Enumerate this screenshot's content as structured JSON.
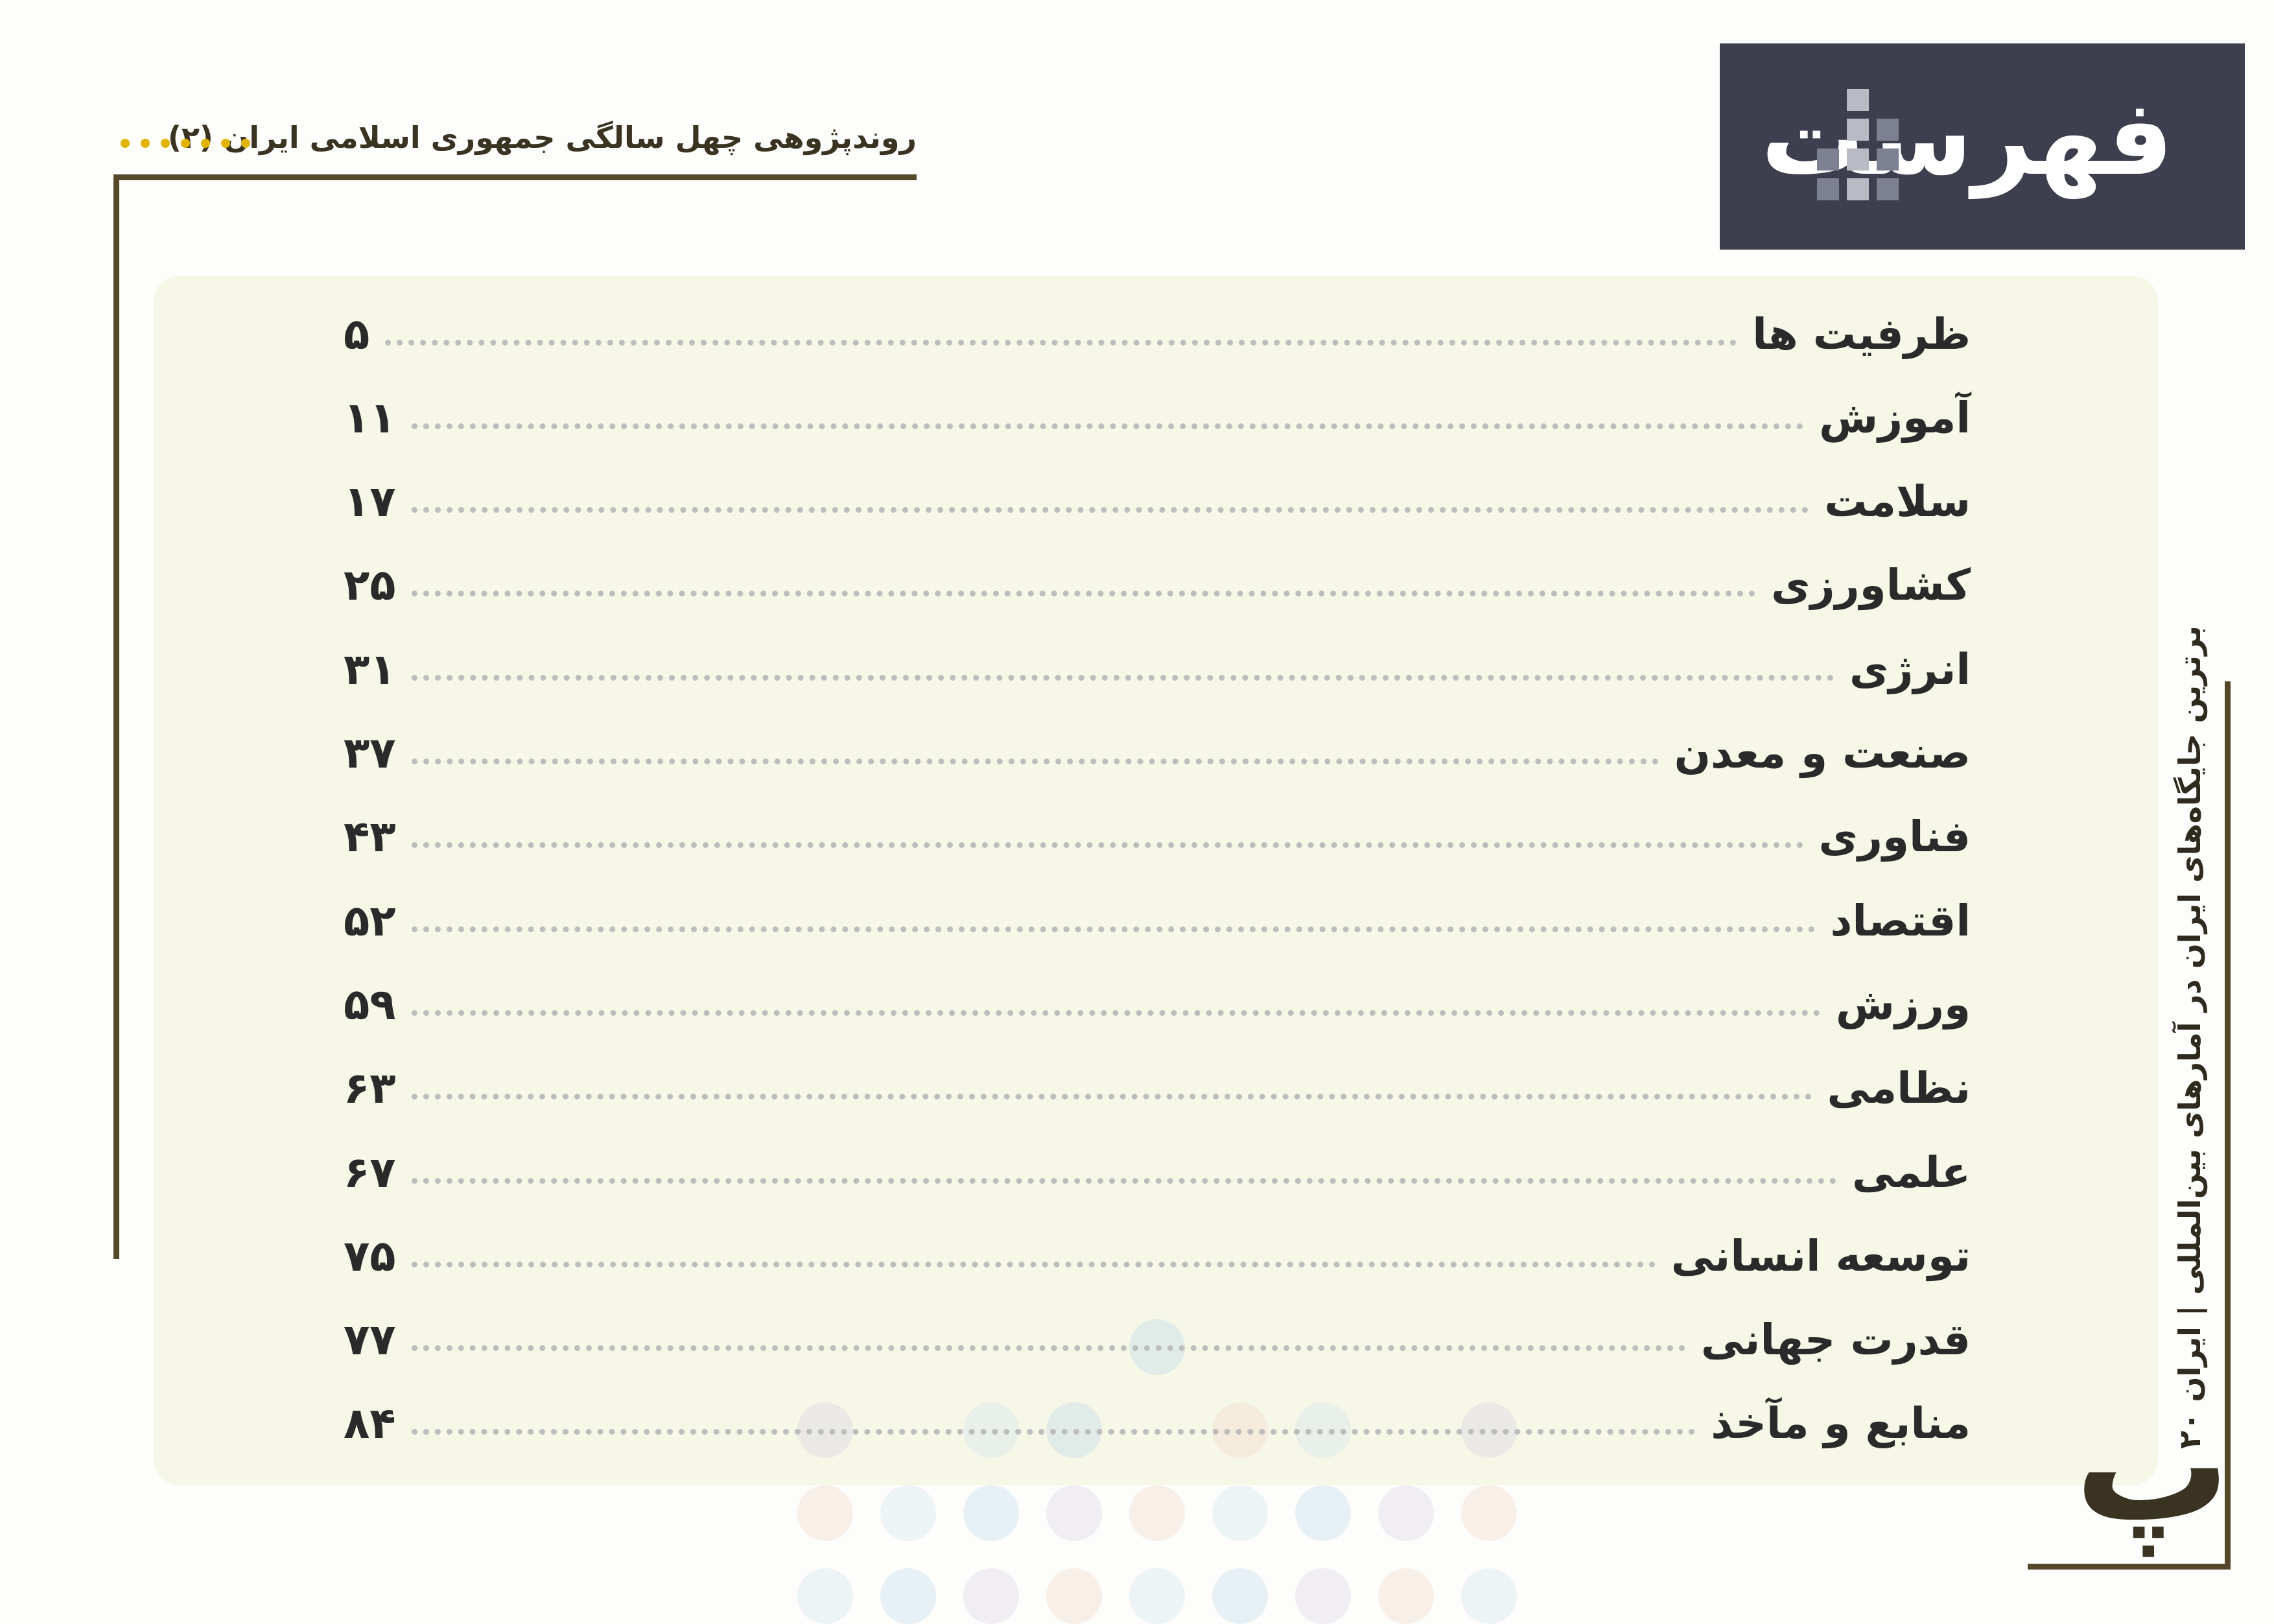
{
  "header": {
    "title": "فهرست",
    "subtitle": "روندپژوهی چهل سالگی جمهوری اسلامی ایران (۲)"
  },
  "side_text": "برترین جایگاه‌های ایران در آمارهای بین‌المللی | ایران ۲۰",
  "page_letter": "پ",
  "toc": [
    {
      "title": "ظرفیت ها",
      "page": "۵"
    },
    {
      "title": "آموزش",
      "page": "۱۱"
    },
    {
      "title": "سلامت",
      "page": "۱۷"
    },
    {
      "title": "کشاورزی",
      "page": "۲۵"
    },
    {
      "title": "انرژی",
      "page": "۳۱"
    },
    {
      "title": "صنعت و معدن",
      "page": "۳۷"
    },
    {
      "title": "فناوری",
      "page": "۴۳"
    },
    {
      "title": "اقتصاد",
      "page": "۵۲"
    },
    {
      "title": "ورزش",
      "page": "۵۹"
    },
    {
      "title": "نظامی",
      "page": "۶۳"
    },
    {
      "title": "علمی",
      "page": "۶۷"
    },
    {
      "title": "توسعه انسانی",
      "page": "۷۵"
    },
    {
      "title": "قدرت جهانی",
      "page": "۷۷"
    },
    {
      "title": "منابع و مآخذ",
      "page": "۸۴"
    }
  ]
}
